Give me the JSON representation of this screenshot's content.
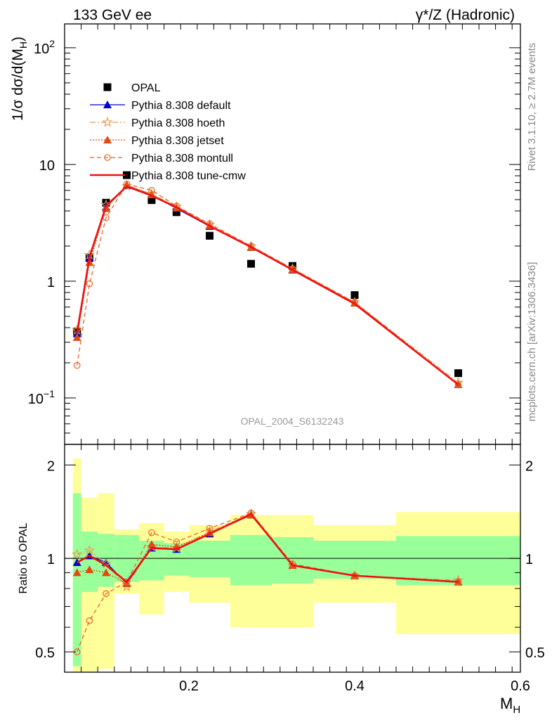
{
  "header": {
    "left": "133 GeV ee",
    "right": "γ*/Z (Hadronic)"
  },
  "side": {
    "rivet": "Rivet 3.1.10, ≥ 2.7M events",
    "mcplots": "mcplots.cern.ch [arXiv:1306.3436]"
  },
  "analysis_id": "OPAL_2004_S6132243",
  "colors": {
    "data": "#000000",
    "default": "#0000cc",
    "hoeth": "#e39b53",
    "jetset": "#e04a10",
    "montull": "#e8642a",
    "tunecmw": "#ee1111",
    "band_inner": "#99ff99",
    "band_outer": "#ffff99"
  },
  "chart_data": [
    {
      "type": "scatter",
      "panel": "main",
      "ylabel": "1/σ dσ/d(M",
      "ylabel_sub": "H",
      "ylabel_close": ")",
      "yscale": "log",
      "xlim": [
        0.05,
        0.6
      ],
      "ylim": [
        0.04,
        160
      ],
      "ytick_labels": [
        {
          "value": 100,
          "base": "10",
          "exp": "2"
        },
        {
          "value": 10,
          "base": "10",
          "exp": ""
        },
        {
          "value": 1,
          "base": "1",
          "exp": ""
        },
        {
          "value": 0.1,
          "base": "10",
          "exp": "−1"
        }
      ],
      "x": [
        0.065,
        0.08,
        0.1,
        0.125,
        0.155,
        0.185,
        0.225,
        0.275,
        0.325,
        0.4,
        0.525
      ],
      "series": [
        {
          "key": "data",
          "name": "OPAL",
          "marker": "square",
          "values": [
            0.37,
            1.58,
            4.7,
            8.1,
            4.95,
            3.9,
            2.45,
            1.41,
            1.35,
            0.76,
            0.163
          ]
        },
        {
          "key": "default",
          "name": "Pythia 8.308 default",
          "marker": "triangle",
          "dash": "",
          "values": [
            0.355,
            1.6,
            4.35,
            6.6,
            5.5,
            4.2,
            2.95,
            1.95,
            1.25,
            0.65,
            0.13
          ]
        },
        {
          "key": "hoeth",
          "name": "Pythia 8.308 hoeth",
          "marker": "star",
          "dash": "8,3,2,3",
          "values": [
            0.38,
            1.68,
            4.5,
            6.55,
            5.6,
            4.35,
            3.05,
            2.0,
            1.28,
            0.66,
            0.135
          ]
        },
        {
          "key": "jetset",
          "name": "Pythia 8.308 jetset",
          "marker": "triangle",
          "dash": "2,2",
          "values": [
            0.33,
            1.45,
            4.2,
            6.7,
            5.5,
            4.25,
            3.0,
            1.95,
            1.26,
            0.65,
            0.13
          ]
        },
        {
          "key": "montull",
          "name": "Pythia 8.308 montull",
          "marker": "circle",
          "dash": "6,4",
          "values": [
            0.19,
            0.95,
            3.5,
            6.8,
            6.0,
            4.4,
            3.1,
            2.0,
            1.28,
            0.66,
            0.13
          ]
        },
        {
          "key": "tunecmw",
          "name": "Pythia 8.308 tune-cmw",
          "marker": "none",
          "dash": "",
          "values": [
            0.36,
            1.6,
            4.4,
            6.5,
            5.4,
            4.3,
            2.97,
            1.96,
            1.25,
            0.64,
            0.13
          ]
        }
      ]
    },
    {
      "type": "line",
      "panel": "ratio",
      "ylabel": "Ratio to OPAL",
      "xlabel": "M",
      "xlabel_sub": "H",
      "yscale": "log",
      "xlim": [
        0.05,
        0.6
      ],
      "ylim": [
        0.43,
        2.33
      ],
      "ytick_labels": [
        {
          "value": 2,
          "label": "2"
        },
        {
          "value": 1,
          "label": "1"
        },
        {
          "value": 0.5,
          "label": "0.5"
        }
      ],
      "xtick_labels": [
        {
          "value": 0.2,
          "label": "0.2"
        },
        {
          "value": 0.4,
          "label": "0.4"
        },
        {
          "value": 0.6,
          "label": "0.6"
        }
      ],
      "bins": [
        {
          "lo": 0.06,
          "hi": 0.07,
          "in_lo": 0.45,
          "in_hi": 1.62,
          "out_lo": 0.43,
          "out_hi": 2.1
        },
        {
          "lo": 0.07,
          "hi": 0.09,
          "in_lo": 0.78,
          "in_hi": 1.22,
          "out_lo": 0.43,
          "out_hi": 1.57
        },
        {
          "lo": 0.09,
          "hi": 0.11,
          "in_lo": 0.81,
          "in_hi": 1.2,
          "out_lo": 0.44,
          "out_hi": 1.62
        },
        {
          "lo": 0.11,
          "hi": 0.14,
          "in_lo": 0.84,
          "in_hi": 1.19,
          "out_lo": 0.77,
          "out_hi": 1.24
        },
        {
          "lo": 0.14,
          "hi": 0.17,
          "in_lo": 0.85,
          "in_hi": 1.14,
          "out_lo": 0.66,
          "out_hi": 1.3
        },
        {
          "lo": 0.17,
          "hi": 0.2,
          "in_lo": 0.88,
          "in_hi": 1.12,
          "out_lo": 0.78,
          "out_hi": 1.22
        },
        {
          "lo": 0.2,
          "hi": 0.25,
          "in_lo": 0.87,
          "in_hi": 1.14,
          "out_lo": 0.72,
          "out_hi": 1.28
        },
        {
          "lo": 0.25,
          "hi": 0.3,
          "in_lo": 0.82,
          "in_hi": 1.19,
          "out_lo": 0.6,
          "out_hi": 1.38
        },
        {
          "lo": 0.3,
          "hi": 0.35,
          "in_lo": 0.83,
          "in_hi": 1.17,
          "out_lo": 0.6,
          "out_hi": 1.38
        },
        {
          "lo": 0.35,
          "hi": 0.45,
          "in_lo": 0.86,
          "in_hi": 1.14,
          "out_lo": 0.72,
          "out_hi": 1.28
        },
        {
          "lo": 0.45,
          "hi": 0.6,
          "in_lo": 0.82,
          "in_hi": 1.18,
          "out_lo": 0.57,
          "out_hi": 1.41
        }
      ],
      "x": [
        0.065,
        0.08,
        0.1,
        0.125,
        0.155,
        0.185,
        0.225,
        0.275,
        0.325,
        0.4,
        0.525
      ],
      "series": [
        {
          "key": "default",
          "name": "Pythia 8.308 default",
          "marker": "triangle",
          "dash": "",
          "values": [
            0.97,
            1.02,
            0.97,
            0.83,
            1.08,
            1.07,
            1.2,
            1.38,
            0.95,
            0.88,
            0.84
          ]
        },
        {
          "key": "hoeth",
          "name": "Pythia 8.308 hoeth",
          "marker": "star",
          "dash": "8,3,2,3",
          "values": [
            1.03,
            1.06,
            0.96,
            0.81,
            1.09,
            1.08,
            1.22,
            1.39,
            0.95,
            0.88,
            0.85
          ]
        },
        {
          "key": "jetset",
          "name": "Pythia 8.308 jetset",
          "marker": "triangle",
          "dash": "2,2",
          "values": [
            0.9,
            0.92,
            0.9,
            0.83,
            1.11,
            1.09,
            1.21,
            1.38,
            0.95,
            0.88,
            0.84
          ]
        },
        {
          "key": "montull",
          "name": "Pythia 8.308 montull",
          "marker": "circle",
          "dash": "6,4",
          "values": [
            0.5,
            0.63,
            0.77,
            0.84,
            1.21,
            1.13,
            1.25,
            1.4,
            0.96,
            0.88,
            0.84
          ]
        },
        {
          "key": "tunecmw",
          "name": "Pythia 8.308 tune-cmw",
          "marker": "none",
          "dash": "",
          "values": [
            0.97,
            1.02,
            0.95,
            0.84,
            1.08,
            1.07,
            1.2,
            1.39,
            0.95,
            0.88,
            0.84
          ]
        }
      ]
    }
  ]
}
